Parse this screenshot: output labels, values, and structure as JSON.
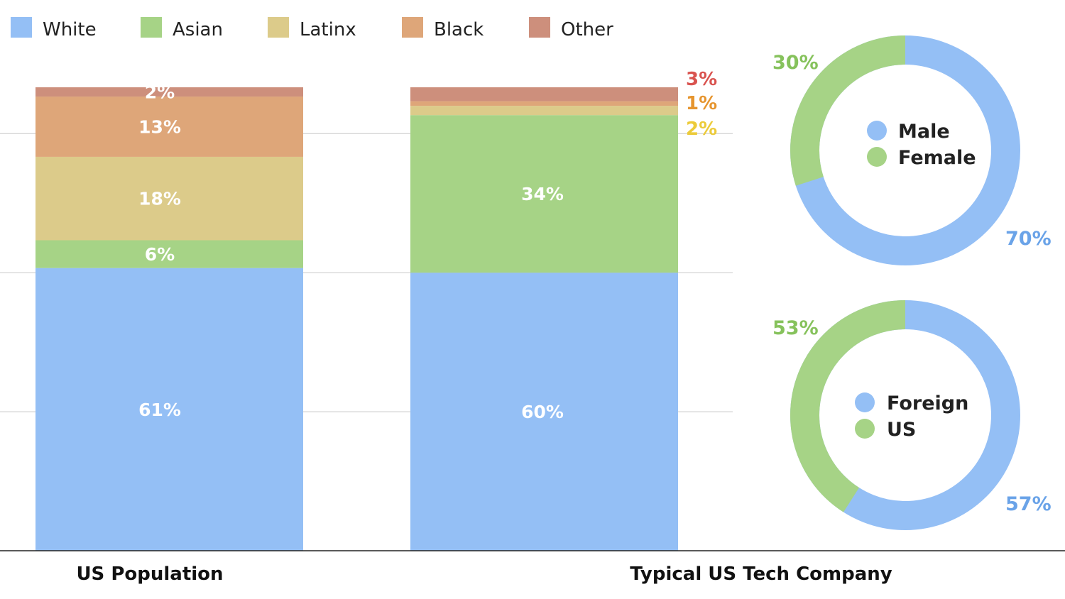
{
  "colors": {
    "white": "#94bff5",
    "asian": "#a6d386",
    "latinx": "#dccb8a",
    "black": "#dea679",
    "other": "#cd8f7c",
    "other_label": "#d9534f",
    "black_label": "#e6952f",
    "latinx_label": "#eccb3a",
    "male_label": "#6aa3e8",
    "female_label": "#86c25c"
  },
  "chart_data": [
    {
      "type": "bar",
      "stacked": true,
      "legend": [
        "White",
        "Asian",
        "Latinx",
        "Black",
        "Other"
      ],
      "legend_position": "top-left",
      "categories": [
        "US Population",
        "Typical US Tech Company"
      ],
      "series": [
        {
          "name": "White",
          "values": [
            61,
            60
          ]
        },
        {
          "name": "Asian",
          "values": [
            6,
            34
          ]
        },
        {
          "name": "Latinx",
          "values": [
            18,
            2
          ]
        },
        {
          "name": "Black",
          "values": [
            13,
            1
          ]
        },
        {
          "name": "Other",
          "values": [
            2,
            3
          ]
        }
      ],
      "data_labels": {
        "US Population": [
          "61%",
          "6%",
          "18%",
          "13%",
          "2%"
        ],
        "Typical US Tech Company": [
          "60%",
          "34%",
          "2%",
          "1%",
          "3%"
        ]
      },
      "ylim": [
        0,
        100
      ],
      "grid": true
    },
    {
      "type": "pie",
      "donut": true,
      "labels": [
        "Male",
        "Female"
      ],
      "values": [
        70,
        30
      ],
      "value_labels": [
        "70%",
        "30%"
      ]
    },
    {
      "type": "pie",
      "donut": true,
      "labels": [
        "Foreign",
        "US"
      ],
      "values": [
        57,
        53
      ],
      "value_labels": [
        "57%",
        "53%"
      ]
    }
  ]
}
